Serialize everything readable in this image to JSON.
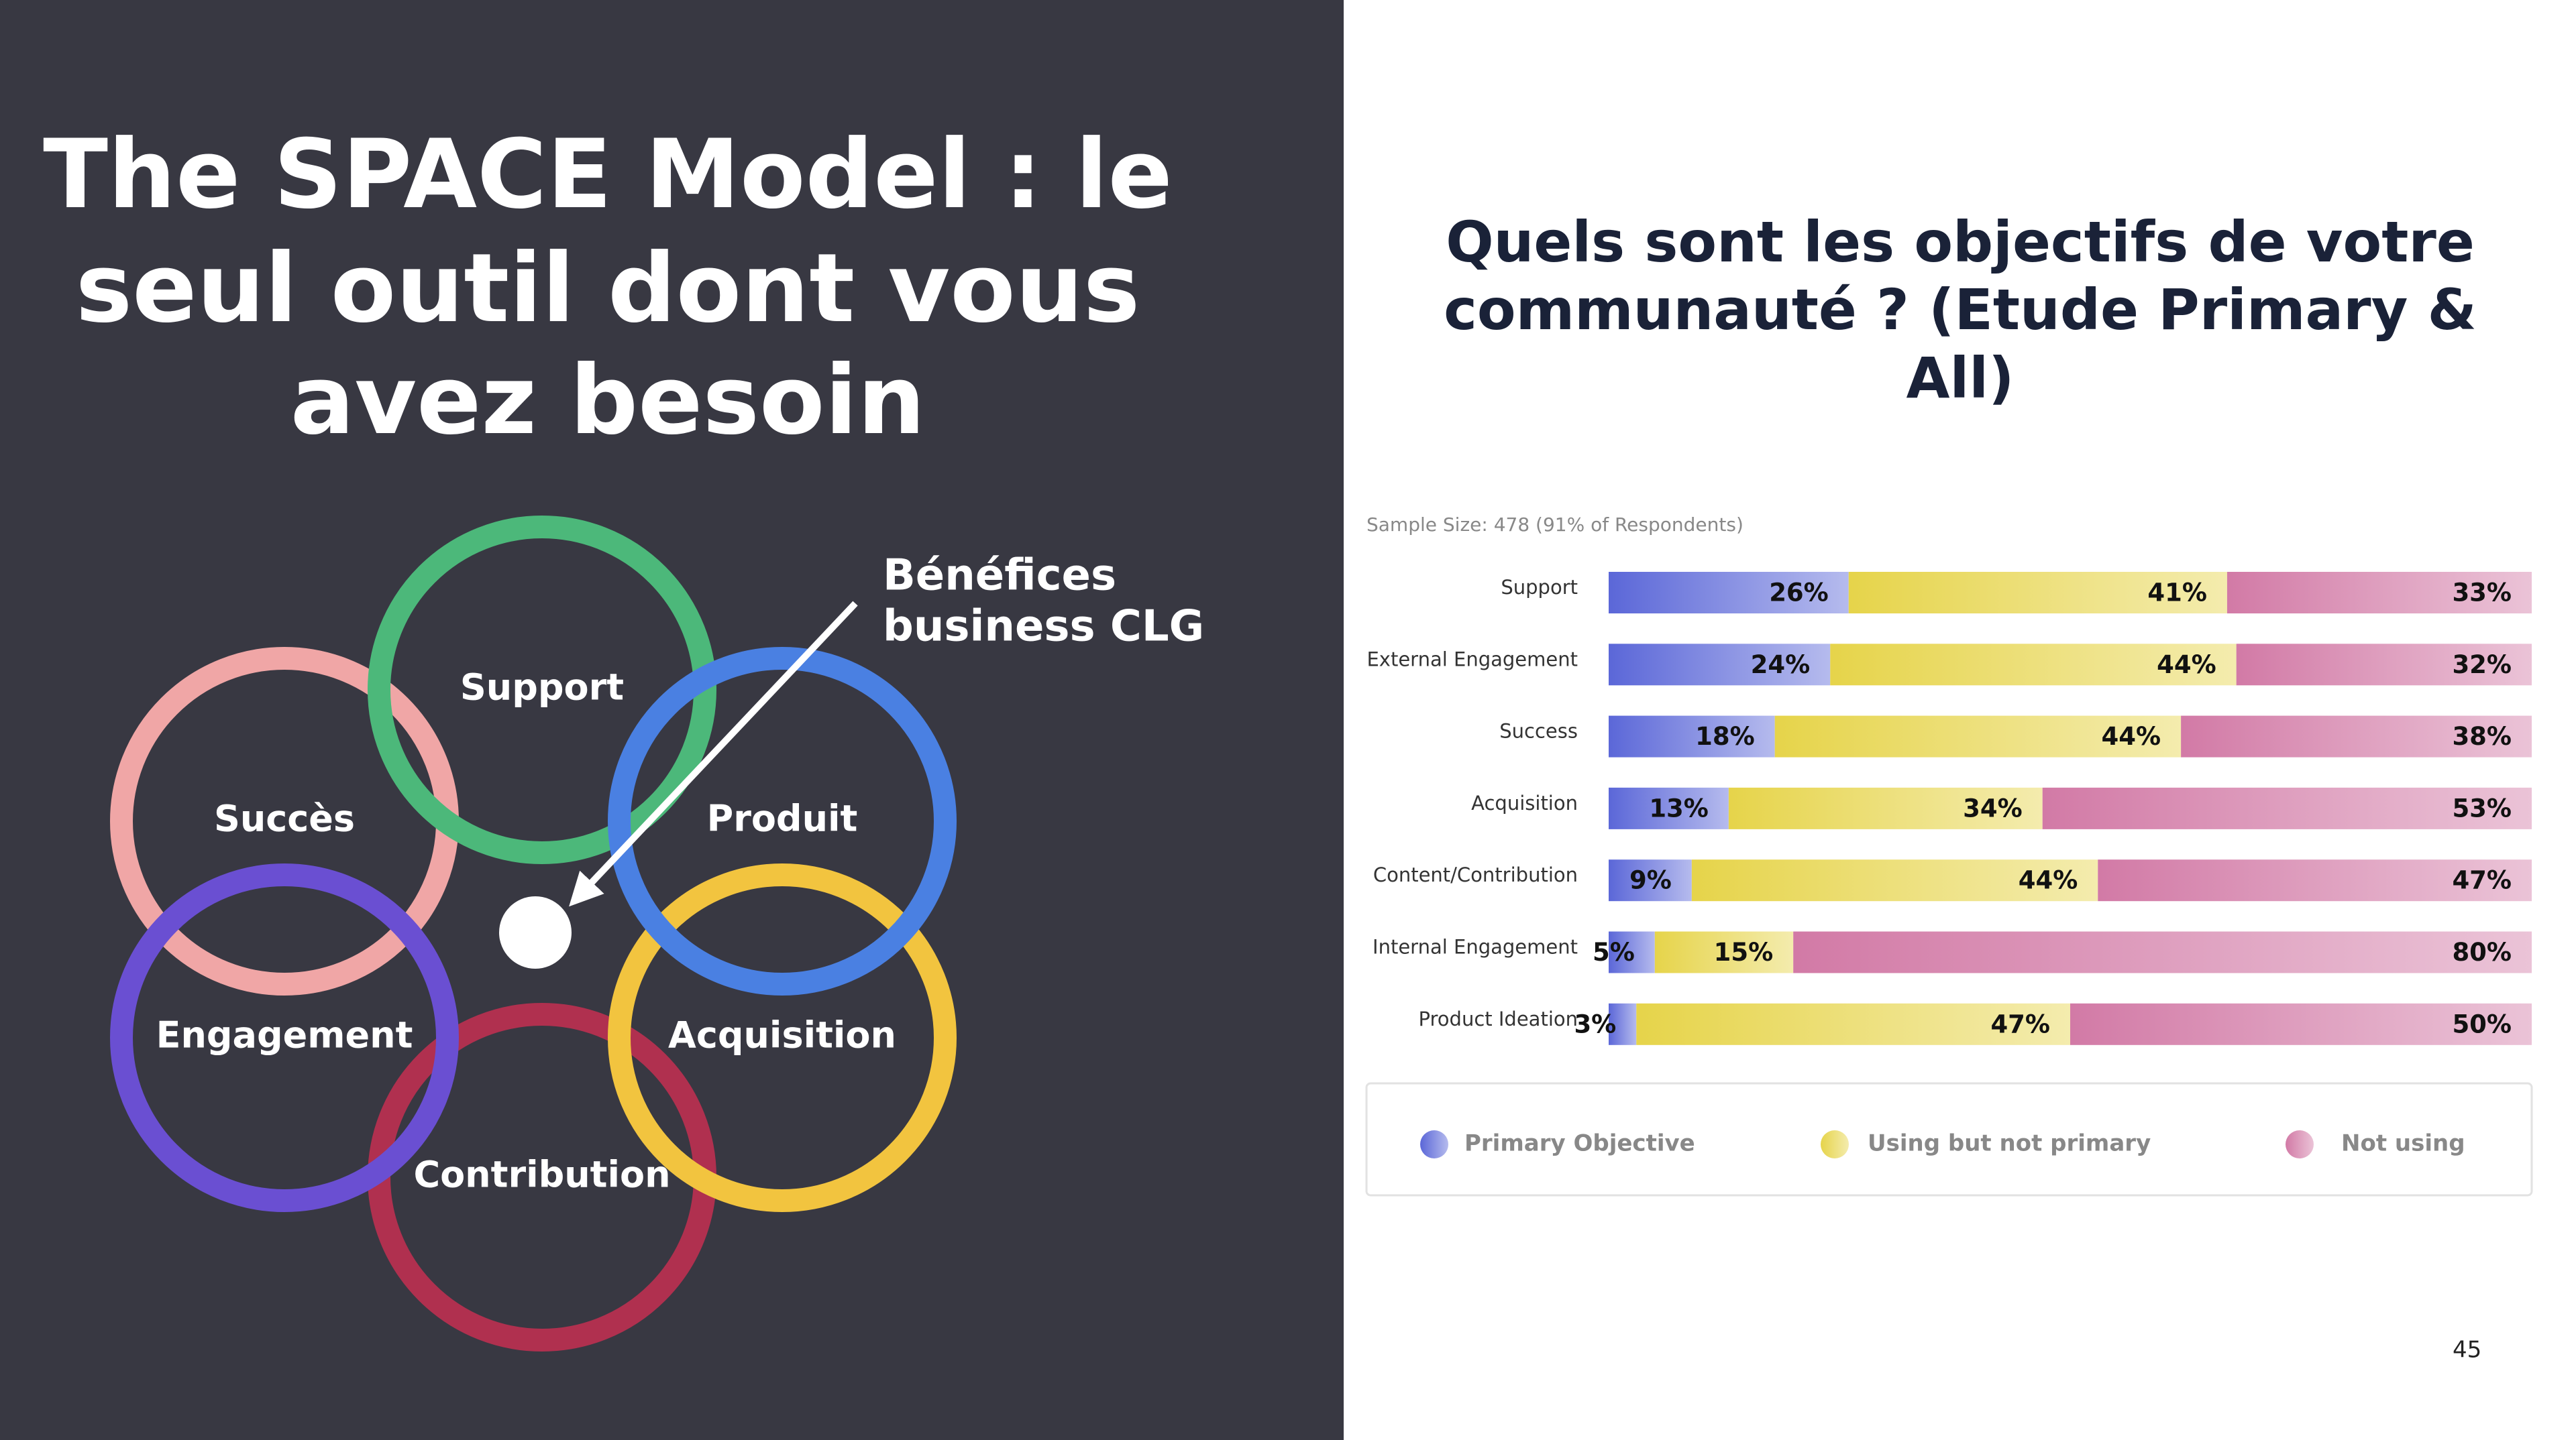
{
  "title": [
    "The SPACE Model : le",
    "seul outil dont vous",
    "avez besoin"
  ],
  "diagram": {
    "nodes": [
      {
        "label": "Contribution",
        "color": "#b0304f"
      },
      {
        "label": "Succès",
        "color": "#f0a6a6"
      },
      {
        "label": "Engagement",
        "color": "#6a4fd2"
      },
      {
        "label": "Acquisition",
        "color": "#f2c43f"
      },
      {
        "label": "Support",
        "color": "#4cb87a"
      },
      {
        "label": "Produit",
        "color": "#4a80e2"
      }
    ],
    "annotation": [
      "Bénéfices",
      "business CLG"
    ]
  },
  "chart_data": {
    "type": "stacked-bar",
    "title": [
      "Quels sont les objectifs de votre",
      "communauté ? (Etude Primary &",
      "All)"
    ],
    "subtitle": "Sample Size: 478 (91% of Respondents)",
    "categories": [
      "Support",
      "External Engagement",
      "Success",
      "Acquisition",
      "Content/Contribution",
      "Internal Engagement",
      "Product Ideation"
    ],
    "xlim": [
      0,
      100
    ],
    "series": [
      {
        "name": "Primary Objective",
        "color": "#5b67d8",
        "values": [
          26,
          24,
          18,
          13,
          9,
          5,
          3
        ],
        "value_labels": [
          "26%",
          "24%",
          "18%",
          "13%",
          "9%",
          "5%",
          "3%"
        ]
      },
      {
        "name": "Using but not primary",
        "color": "#e6d44a",
        "values": [
          41,
          44,
          44,
          34,
          44,
          15,
          47
        ],
        "value_labels": [
          "41%",
          "44%",
          "44%",
          "34%",
          "44%",
          "15%",
          "47%"
        ]
      },
      {
        "name": "Not using",
        "color": "#d27aa6",
        "values": [
          33,
          32,
          38,
          53,
          47,
          80,
          50
        ],
        "value_labels": [
          "33%",
          "32%",
          "38%",
          "53%",
          "47%",
          "80%",
          "50%"
        ]
      }
    ]
  },
  "page_number": "45"
}
